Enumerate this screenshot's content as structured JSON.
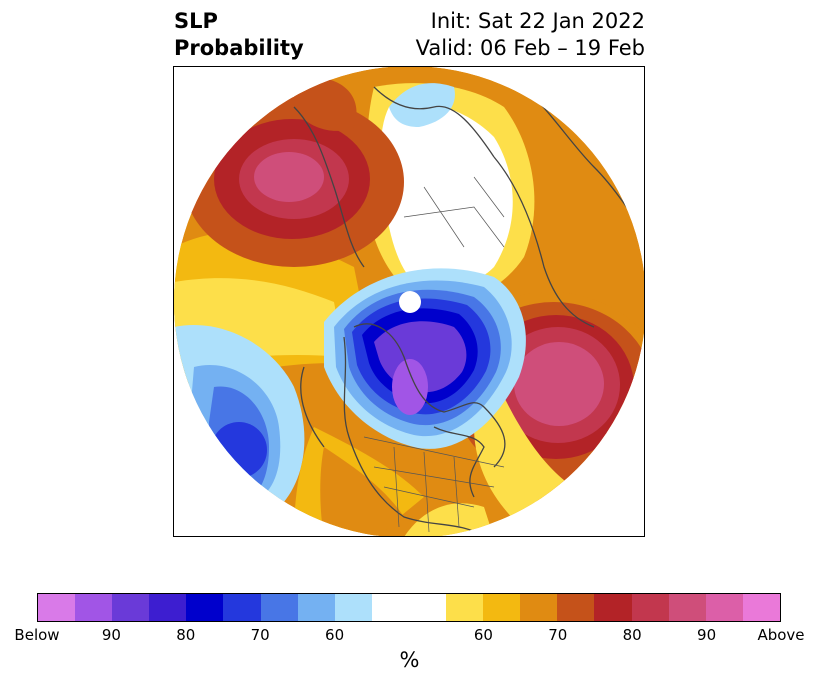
{
  "title": {
    "left_line1": "SLP",
    "left_line2": "Probability",
    "right_line1": "Init: Sat 22 Jan 2022",
    "right_line2": "Valid: 06 Feb – 19 Feb"
  },
  "map": {
    "projection": "north-polar-stereographic",
    "features": [
      "below-normal-center-hudson-bay",
      "below-normal-center-north-pacific",
      "above-normal-center-north-atlantic",
      "above-normal-center-siberia",
      "above-normal-band-northern-pacific",
      "above-normal-southern-us"
    ]
  },
  "colorbar": {
    "colors": [
      "#d97ae8",
      "#a155e6",
      "#6a3ad8",
      "#3d1ed0",
      "#0000cc",
      "#2438dd",
      "#4876e6",
      "#74b1f2",
      "#ade0fb",
      "#ffffff",
      "#ffffff",
      "#fddf4a",
      "#f3b911",
      "#e08b12",
      "#c5521a",
      "#b32327",
      "#c2374e",
      "#cf4e7a",
      "#dc5fa8",
      "#ea79d9"
    ],
    "tick_labels": [
      "Below",
      "90",
      "80",
      "70",
      "60",
      "60",
      "70",
      "80",
      "90",
      "Above"
    ],
    "unit": "%"
  }
}
